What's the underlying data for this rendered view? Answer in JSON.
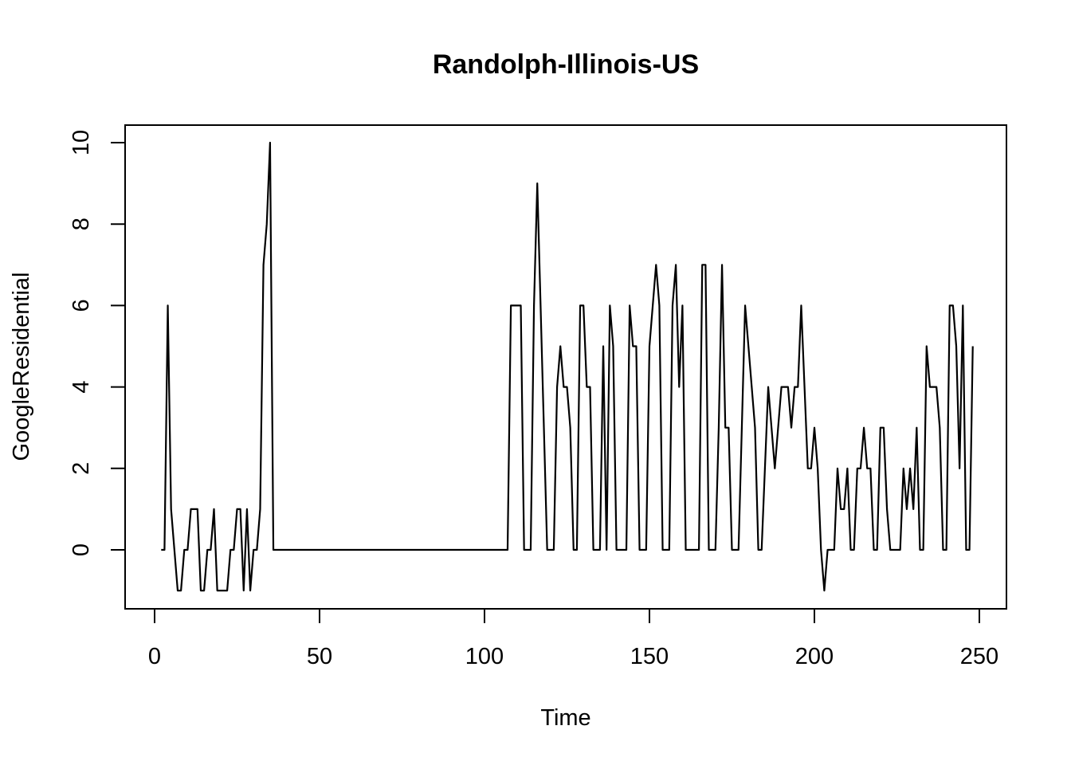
{
  "chart_data": {
    "type": "line",
    "title": "Randolph-Illinois-US",
    "xlabel": "Time",
    "ylabel": "GoogleResidential",
    "xlim": [
      1,
      248
    ],
    "ylim": [
      -1,
      10
    ],
    "x_ticks": [
      0,
      50,
      100,
      150,
      200,
      250
    ],
    "y_ticks": [
      0,
      2,
      4,
      6,
      8,
      10
    ],
    "x_tick_labels": [
      "0",
      "50",
      "100",
      "150",
      "200",
      "250"
    ],
    "y_tick_labels": [
      "0",
      "2",
      "4",
      "6",
      "8",
      "10"
    ],
    "grid": false,
    "legend": "none",
    "line_color": "#000000",
    "x_start": 2,
    "series": [
      {
        "values": [
          0,
          0,
          6,
          1,
          0,
          -1,
          -1,
          0,
          0,
          1,
          1,
          1,
          -1,
          -1,
          0,
          0,
          1,
          -1,
          -1,
          -1,
          -1,
          0,
          0,
          1,
          1,
          -1,
          1,
          -1,
          0,
          0,
          1,
          7,
          8,
          10,
          0,
          0,
          0,
          0,
          0,
          0,
          0,
          0,
          0,
          0,
          0,
          0,
          0,
          0,
          0,
          0,
          0,
          0,
          0,
          0,
          0,
          0,
          0,
          0,
          0,
          0,
          0,
          0,
          0,
          0,
          0,
          0,
          0,
          0,
          0,
          0,
          0,
          0,
          0,
          0,
          0,
          0,
          0,
          0,
          0,
          0,
          0,
          0,
          0,
          0,
          0,
          0,
          0,
          0,
          0,
          0,
          0,
          0,
          0,
          0,
          0,
          0,
          0,
          0,
          0,
          0,
          0,
          0,
          0,
          0,
          0,
          0,
          6,
          6,
          6,
          6,
          0,
          0,
          0,
          6,
          9,
          6,
          3,
          0,
          0,
          0,
          4,
          5,
          4,
          4,
          3,
          0,
          0,
          6,
          6,
          4,
          4,
          0,
          0,
          0,
          5,
          0,
          6,
          5,
          0,
          0,
          0,
          0,
          6,
          5,
          5,
          0,
          0,
          0,
          5,
          6,
          7,
          6,
          0,
          0,
          0,
          6,
          7,
          4,
          6,
          0,
          0,
          0,
          0,
          0,
          7,
          7,
          0,
          0,
          0,
          3,
          7,
          3,
          3,
          0,
          0,
          0,
          3,
          6,
          5,
          4,
          3,
          0,
          0,
          2,
          4,
          3,
          2,
          3,
          4,
          4,
          4,
          3,
          4,
          4,
          6,
          4,
          2,
          2,
          3,
          2,
          0,
          -1,
          0,
          0,
          0,
          2,
          1,
          1,
          2,
          0,
          0,
          2,
          2,
          3,
          2,
          2,
          0,
          0,
          3,
          3,
          1,
          0,
          0,
          0,
          0,
          2,
          1,
          2,
          1,
          3,
          0,
          0,
          5,
          4,
          4,
          4,
          3,
          0,
          0,
          6,
          6,
          5,
          2,
          6,
          0,
          0,
          5
        ]
      }
    ]
  }
}
